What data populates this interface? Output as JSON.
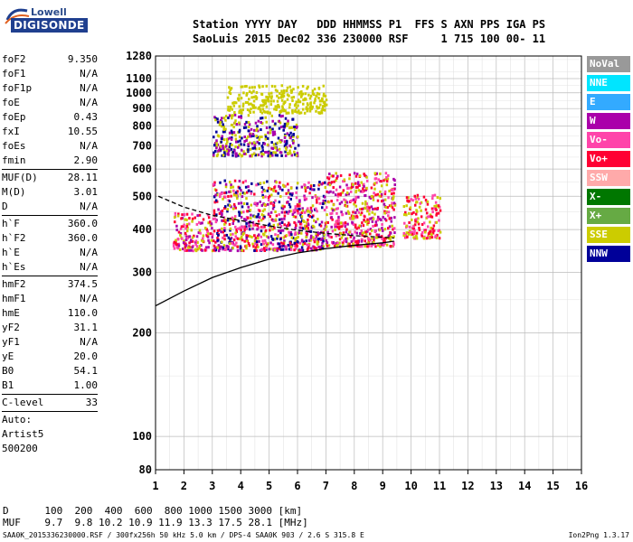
{
  "logo": {
    "brand_top": "Lowell",
    "brand_main": "DIGISONDE"
  },
  "header": {
    "line1": "Station YYYY DAY   DDD HHMMSS P1  FFS S AXN PPS IGA PS",
    "line2": "SaoLuis 2015 Dec02 336 230000 RSF     1 715 100 00- 11"
  },
  "params": [
    {
      "k": "foF2",
      "v": "9.350"
    },
    {
      "k": "foF1",
      "v": "N/A"
    },
    {
      "k": "foF1p",
      "v": "N/A"
    },
    {
      "k": "foE",
      "v": "N/A"
    },
    {
      "k": "foEp",
      "v": "0.43"
    },
    {
      "k": "fxI",
      "v": "10.55"
    },
    {
      "k": "foEs",
      "v": "N/A"
    },
    {
      "k": "fmin",
      "v": "2.90"
    },
    {
      "k": "MUF(D)",
      "v": "28.11",
      "sep": true
    },
    {
      "k": "M(D)",
      "v": "3.01"
    },
    {
      "k": "D",
      "v": "N/A"
    },
    {
      "k": "h`F",
      "v": "360.0",
      "sep": true
    },
    {
      "k": "h`F2",
      "v": "360.0"
    },
    {
      "k": "h`E",
      "v": "N/A"
    },
    {
      "k": "h`Es",
      "v": "N/A"
    },
    {
      "k": "hmF2",
      "v": "374.5",
      "sep": true
    },
    {
      "k": "hmF1",
      "v": "N/A"
    },
    {
      "k": "hmE",
      "v": "110.0"
    },
    {
      "k": "yF2",
      "v": "31.1"
    },
    {
      "k": "yF1",
      "v": "N/A"
    },
    {
      "k": "yE",
      "v": "20.0"
    },
    {
      "k": "B0",
      "v": "54.1"
    },
    {
      "k": "B1",
      "v": "1.00"
    },
    {
      "k": "C-level",
      "v": "33",
      "sep": true
    }
  ],
  "auto_text": [
    "Auto:",
    "Artist5",
    "500200"
  ],
  "legend": [
    {
      "name": "NoVal",
      "color": "#999999"
    },
    {
      "name": "NNE",
      "color": "#00e5ff"
    },
    {
      "name": "E",
      "color": "#33aaff"
    },
    {
      "name": "W",
      "color": "#aa00aa"
    },
    {
      "name": "Vo-",
      "color": "#ff44aa"
    },
    {
      "name": "Vo+",
      "color": "#ff0033"
    },
    {
      "name": "SSW",
      "color": "#ffaaaa"
    },
    {
      "name": "X-",
      "color": "#007700"
    },
    {
      "name": "X+",
      "color": "#66aa44"
    },
    {
      "name": "SSE",
      "color": "#cccc00"
    },
    {
      "name": "NNW",
      "color": "#000099"
    }
  ],
  "bottom": {
    "d_line": "D      100  200  400  600  800 1000 1500 3000 [km]",
    "muf_line": "MUF    9.7  9.8 10.2 10.9 11.9 13.3 17.5 28.1 [MHz]"
  },
  "footer": {
    "left": "SAA0K_2015336230000.RSF / 300fx256h 50 kHz 5.0 km / DPS-4 SAA0K 903 / 2.6 S 315.8 E",
    "right": "Ion2Png 1.3.17"
  },
  "chart_data": {
    "type": "scatter",
    "xlim": [
      1,
      16
    ],
    "ylim": [
      80,
      1280
    ],
    "y_scale": "log",
    "x_ticks": [
      1,
      2,
      3,
      4,
      5,
      6,
      7,
      8,
      9,
      10,
      11,
      12,
      13,
      14,
      15,
      16
    ],
    "y_ticks": [
      80,
      100,
      200,
      300,
      400,
      500,
      600,
      700,
      800,
      900,
      1000,
      1100,
      1280
    ],
    "grid": true,
    "clusters": [
      {
        "x_range": [
          1.6,
          3.0
        ],
        "y_range": [
          350,
          450
        ],
        "colors": [
          "Vo+",
          "Vo-",
          "SSE",
          "W"
        ]
      },
      {
        "x_range": [
          3.0,
          7.0
        ],
        "y_range": [
          350,
          560
        ],
        "colors": [
          "Vo+",
          "Vo-",
          "SSE",
          "W",
          "NNW"
        ]
      },
      {
        "x_range": [
          7.0,
          9.4
        ],
        "y_range": [
          360,
          590
        ],
        "colors": [
          "Vo+",
          "Vo-",
          "SSE",
          "W"
        ]
      },
      {
        "x_range": [
          9.7,
          11.0
        ],
        "y_range": [
          380,
          510
        ],
        "colors": [
          "Vo+",
          "Vo-",
          "SSE"
        ]
      },
      {
        "x_range": [
          3.0,
          6.0
        ],
        "y_range": [
          660,
          870
        ],
        "colors": [
          "SSE",
          "NNW",
          "W"
        ]
      },
      {
        "x_range": [
          3.5,
          7.0
        ],
        "y_range": [
          880,
          1060
        ],
        "colors": [
          "SSE"
        ]
      }
    ],
    "profile_solid": [
      [
        1,
        240
      ],
      [
        2,
        265
      ],
      [
        3,
        290
      ],
      [
        4,
        310
      ],
      [
        5,
        328
      ],
      [
        6,
        342
      ],
      [
        7,
        352
      ],
      [
        8,
        360
      ],
      [
        9,
        366
      ],
      [
        9.4,
        370
      ]
    ],
    "profile_dashed": [
      [
        1.1,
        500
      ],
      [
        2,
        465
      ],
      [
        3,
        440
      ],
      [
        4,
        425
      ],
      [
        5,
        410
      ],
      [
        6,
        398
      ],
      [
        7,
        390
      ],
      [
        8,
        384
      ],
      [
        9,
        380
      ],
      [
        9.4,
        378
      ]
    ]
  }
}
